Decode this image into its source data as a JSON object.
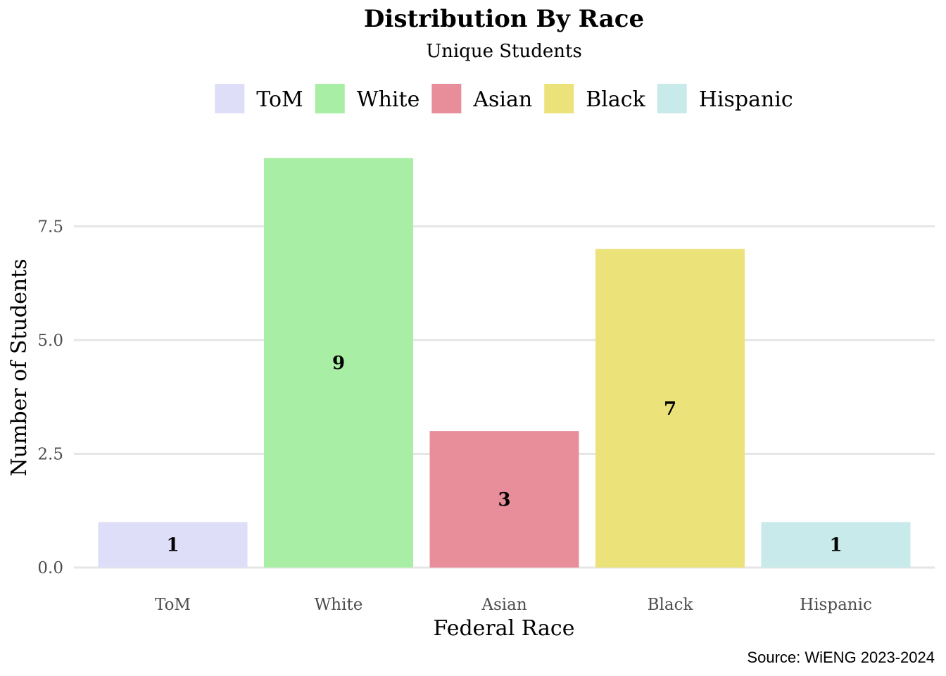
{
  "chart_data": {
    "type": "bar",
    "title": "Distribution By Race",
    "subtitle": "Unique Students",
    "xlabel": "Federal Race",
    "ylabel": "Number of Students",
    "caption": "Source: WiENG 2023-2024",
    "categories": [
      "ToM",
      "White",
      "Asian",
      "Black",
      "Hispanic"
    ],
    "values": [
      1,
      9,
      3,
      7,
      1
    ],
    "data_labels": [
      "1",
      "9",
      "3",
      "7",
      "1"
    ],
    "colors": [
      "#dedef8",
      "#a8eea4",
      "#e88e9b",
      "#ebe379",
      "#c8eaea"
    ],
    "ylim": [
      0,
      9.3
    ],
    "yticks": [
      0,
      2.5,
      5,
      7.5
    ],
    "ytick_labels": [
      "0.0",
      "2.5",
      "5.0",
      "7.5"
    ],
    "legend": {
      "position": "top",
      "entries": [
        "ToM",
        "White",
        "Asian",
        "Black",
        "Hispanic"
      ]
    },
    "grid": "horizontal-major"
  }
}
